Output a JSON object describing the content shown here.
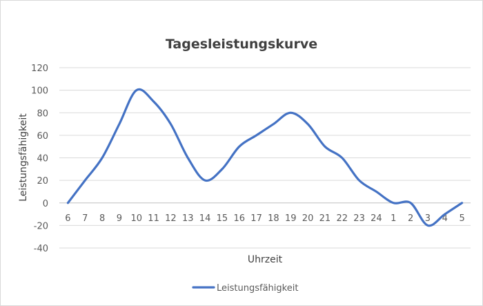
{
  "chart_data": {
    "type": "line",
    "title": "Tagesleistungskurve",
    "xlabel": "Uhrzeit",
    "ylabel": "Leistungsfähigkeit",
    "categories": [
      "6",
      "7",
      "8",
      "9",
      "10",
      "11",
      "12",
      "13",
      "14",
      "15",
      "16",
      "17",
      "18",
      "19",
      "20",
      "21",
      "22",
      "23",
      "24",
      "1",
      "2",
      "3",
      "4",
      "5"
    ],
    "series": [
      {
        "name": "Leistungsfähigkeit",
        "color": "#4472C4",
        "values": [
          0,
          20,
          40,
          70,
          100,
          90,
          70,
          40,
          20,
          30,
          50,
          60,
          70,
          80,
          70,
          50,
          40,
          20,
          10,
          0,
          0,
          -20,
          -10,
          0
        ]
      }
    ],
    "ylim": [
      -40,
      120
    ],
    "yticks": [
      -40,
      -20,
      0,
      20,
      40,
      60,
      80,
      100,
      120
    ],
    "grid": true,
    "legend_position": "bottom"
  }
}
